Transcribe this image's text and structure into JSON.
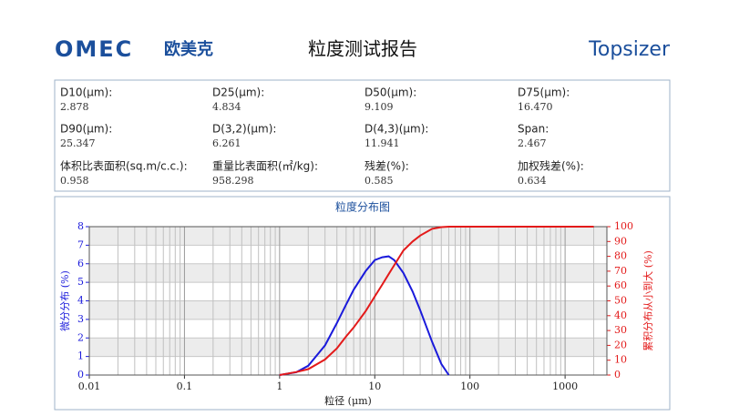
{
  "header": {
    "logo_text": "OMEC",
    "logo_cn": "欧美克",
    "title": "粒度测试报告",
    "brand": "Topsizer"
  },
  "stats": [
    {
      "label": "D10(μm):",
      "value": "2.878"
    },
    {
      "label": "D25(μm):",
      "value": "4.834"
    },
    {
      "label": "D50(μm):",
      "value": "9.109"
    },
    {
      "label": "D75(μm):",
      "value": "16.470"
    },
    {
      "label": "D90(μm):",
      "value": "25.347"
    },
    {
      "label": "D(3,2)(μm):",
      "value": "6.261"
    },
    {
      "label": "D(4,3)(μm):",
      "value": "11.941"
    },
    {
      "label": "Span:",
      "value": "2.467"
    },
    {
      "label": "体积比表面积(sq.m/c.c.):",
      "value": "0.958"
    },
    {
      "label": "重量比表面积(㎡/kg):",
      "value": "958.298"
    },
    {
      "label": "残差(%):",
      "value": "0.585"
    },
    {
      "label": "加权残差(%):",
      "value": "0.634"
    }
  ],
  "chart_data": {
    "type": "line",
    "title": "粒度分布图",
    "x_label": "粒径 (μm)",
    "y_label": "微分分布 (%)",
    "y2_label": "累积分布从小到大 (%)",
    "x_log": true,
    "grid": true,
    "x": [
      1,
      1.5,
      2,
      3,
      4,
      5,
      6,
      8,
      10,
      12,
      14,
      16,
      20,
      25,
      30,
      40,
      50,
      60,
      2000
    ],
    "series": [
      {
        "name": "微分分布",
        "color": "#1a1adb",
        "values": [
          0,
          0.15,
          0.5,
          1.6,
          2.8,
          3.8,
          4.6,
          5.6,
          6.2,
          6.35,
          6.4,
          6.2,
          5.5,
          4.5,
          3.5,
          1.8,
          0.6,
          0,
          null
        ]
      },
      {
        "name": "累积分布",
        "color": "#e31a1a",
        "axis": "y2",
        "values": [
          0,
          2,
          4,
          10.5,
          18,
          26,
          32,
          43,
          53,
          61,
          68,
          74,
          84,
          90,
          94,
          98.5,
          99.7,
          100,
          100
        ]
      }
    ],
    "xlim": [
      0.01,
      2750
    ],
    "xticks": [
      0.01,
      0.1,
      1,
      10,
      100,
      1000
    ],
    "ylim": [
      0,
      8
    ],
    "yticks": [
      0,
      1,
      2,
      3,
      4,
      5,
      6,
      7,
      8
    ],
    "y2lim": [
      0,
      100
    ],
    "y2ticks": [
      0,
      10,
      20,
      30,
      40,
      50,
      60,
      70,
      80,
      90,
      100
    ]
  }
}
